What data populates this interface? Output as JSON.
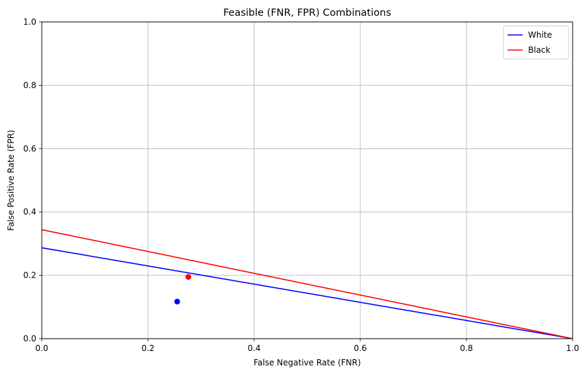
{
  "chart_data": {
    "type": "line",
    "title": "Feasible (FNR, FPR) Combinations",
    "xlabel": "False Negative Rate (FNR)",
    "ylabel": "False Positive Rate (FPR)",
    "xlim": [
      0,
      1
    ],
    "ylim": [
      0,
      1
    ],
    "xticks": [
      0.0,
      0.2,
      0.4,
      0.6,
      0.8,
      1.0
    ],
    "yticks": [
      0.0,
      0.2,
      0.4,
      0.6,
      0.8,
      1.0
    ],
    "xtick_labels": [
      "0.0",
      "0.2",
      "0.4",
      "0.6",
      "0.8",
      "1.0"
    ],
    "ytick_labels": [
      "0.0",
      "0.2",
      "0.4",
      "0.6",
      "0.8",
      "1.0"
    ],
    "grid": true,
    "legend_position": "top-right",
    "series": [
      {
        "name": "White",
        "color": "#0000ff",
        "x": [
          0.0,
          1.0
        ],
        "y": [
          0.287,
          0.0
        ]
      },
      {
        "name": "Black",
        "color": "#ff0000",
        "x": [
          0.0,
          1.0
        ],
        "y": [
          0.344,
          0.0
        ]
      }
    ],
    "points": [
      {
        "color": "#0000ff",
        "x": 0.255,
        "y": 0.117
      },
      {
        "color": "#ff0000",
        "x": 0.276,
        "y": 0.195
      }
    ]
  }
}
